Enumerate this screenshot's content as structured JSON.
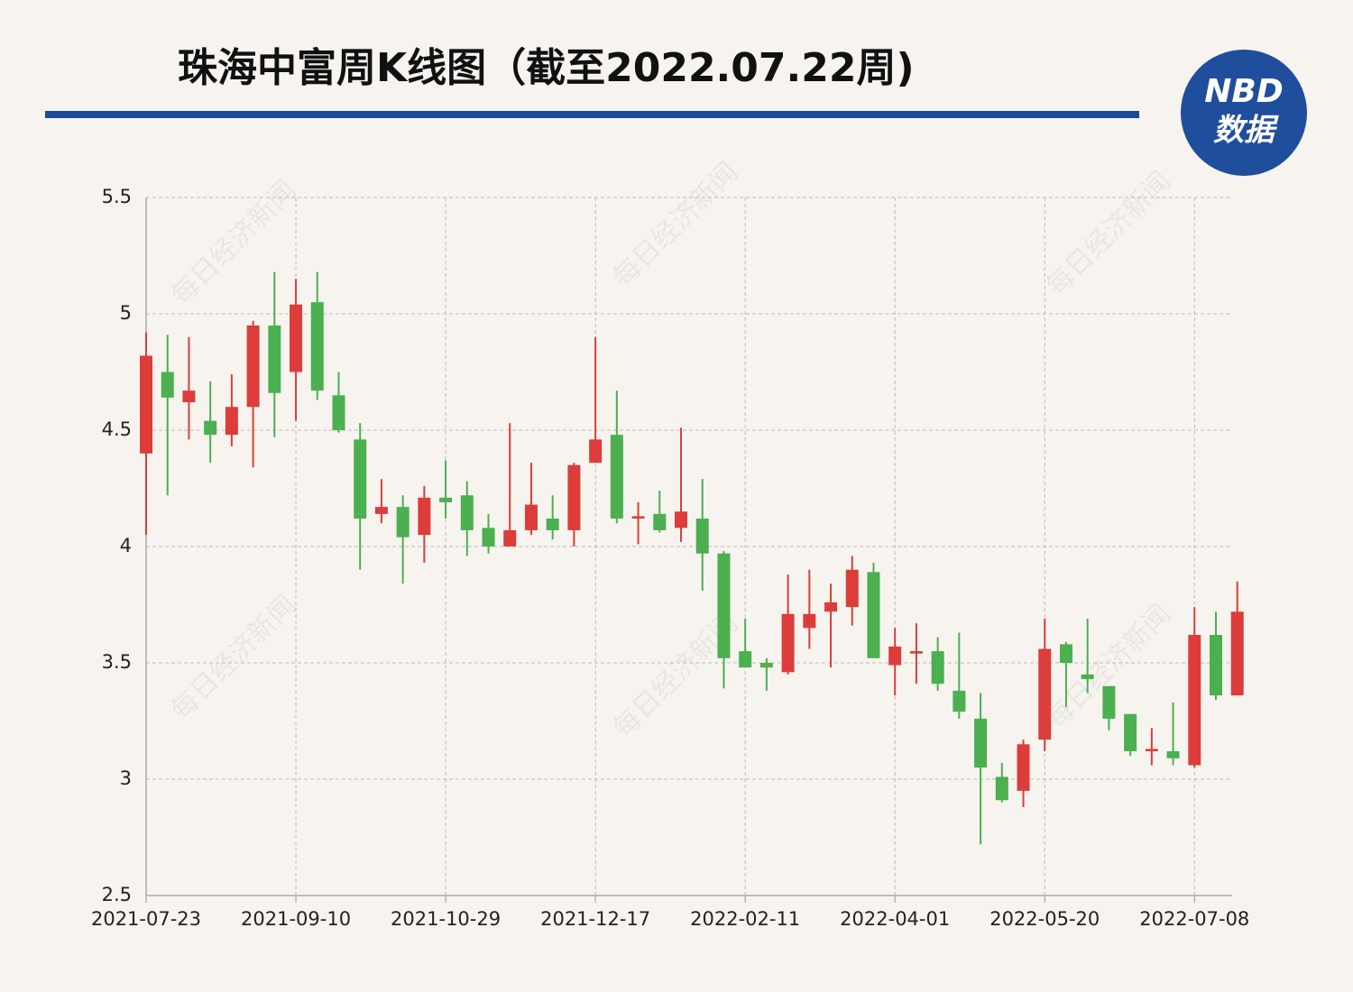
{
  "chart_data": {
    "type": "candlestick",
    "title": "珠海中富周K线图（截至2022.07.22周)",
    "categories": [
      "2021-07-23",
      null,
      null,
      null,
      null,
      null,
      null,
      "2021-09-10",
      null,
      null,
      null,
      null,
      null,
      null,
      "2021-10-29",
      null,
      null,
      null,
      null,
      null,
      null,
      "2021-12-17",
      null,
      null,
      null,
      null,
      null,
      null,
      "2022-02-11",
      null,
      null,
      null,
      null,
      null,
      null,
      "2022-04-01",
      null,
      null,
      null,
      null,
      null,
      null,
      "2022-05-20",
      null,
      null,
      null,
      null,
      null,
      null,
      "2022-07-08",
      null,
      null
    ],
    "open": [
      4.4,
      4.75,
      4.62,
      4.54,
      4.48,
      4.6,
      4.95,
      4.75,
      5.05,
      4.65,
      4.46,
      4.14,
      4.17,
      4.05,
      4.21,
      4.22,
      4.08,
      4.0,
      4.07,
      4.12,
      4.07,
      4.36,
      4.48,
      4.12,
      4.14,
      4.08,
      4.12,
      3.97,
      3.55,
      3.5,
      3.46,
      3.65,
      3.72,
      3.74,
      3.89,
      3.49,
      3.54,
      3.55,
      3.38,
      3.26,
      3.01,
      2.95,
      3.17,
      3.58,
      3.45,
      3.4,
      3.28,
      3.12,
      3.12,
      3.06,
      3.62,
      3.36
    ],
    "high": [
      4.92,
      4.91,
      4.9,
      4.71,
      4.74,
      4.97,
      5.18,
      5.15,
      5.18,
      4.75,
      4.53,
      4.29,
      4.22,
      4.26,
      4.37,
      4.28,
      4.14,
      4.53,
      4.36,
      4.22,
      4.36,
      4.9,
      4.67,
      4.19,
      4.24,
      4.51,
      4.29,
      3.98,
      3.69,
      3.52,
      3.88,
      3.9,
      3.84,
      3.96,
      3.93,
      3.65,
      3.67,
      3.61,
      3.63,
      3.37,
      3.07,
      3.17,
      3.69,
      3.59,
      3.69,
      3.4,
      3.28,
      3.22,
      3.33,
      3.74,
      3.72,
      3.85
    ],
    "low": [
      4.05,
      4.22,
      4.46,
      4.36,
      4.43,
      4.34,
      4.47,
      4.54,
      4.63,
      4.49,
      3.9,
      4.1,
      3.84,
      3.93,
      4.12,
      3.96,
      3.97,
      4.0,
      4.05,
      4.03,
      4.0,
      4.36,
      4.1,
      4.01,
      4.06,
      4.02,
      3.81,
      3.39,
      3.48,
      3.38,
      3.45,
      3.56,
      3.48,
      3.66,
      3.52,
      3.36,
      3.41,
      3.38,
      3.26,
      2.72,
      2.9,
      2.88,
      3.12,
      3.31,
      3.37,
      3.21,
      3.1,
      3.06,
      3.06,
      3.05,
      3.34,
      3.36
    ],
    "close": [
      4.82,
      4.64,
      4.67,
      4.48,
      4.6,
      4.95,
      4.66,
      5.04,
      4.67,
      4.5,
      4.12,
      4.17,
      4.04,
      4.21,
      4.19,
      4.07,
      4.0,
      4.07,
      4.18,
      4.07,
      4.35,
      4.46,
      4.12,
      4.13,
      4.07,
      4.15,
      3.97,
      3.52,
      3.48,
      3.48,
      3.71,
      3.71,
      3.76,
      3.9,
      3.52,
      3.57,
      3.55,
      3.41,
      3.29,
      3.05,
      2.91,
      3.15,
      3.56,
      3.5,
      3.43,
      3.26,
      3.12,
      3.13,
      3.09,
      3.62,
      3.36,
      3.72
    ],
    "up_color": "#dc3d3a",
    "down_color": "#4caf50",
    "ylim": [
      2.5,
      5.5
    ],
    "yticks": [
      2.5,
      3,
      3.5,
      4,
      4.5,
      5,
      5.5
    ],
    "grid": true
  },
  "logo": {
    "line1": "NBD",
    "line2": "数据"
  },
  "watermark": "每日经济新闻"
}
